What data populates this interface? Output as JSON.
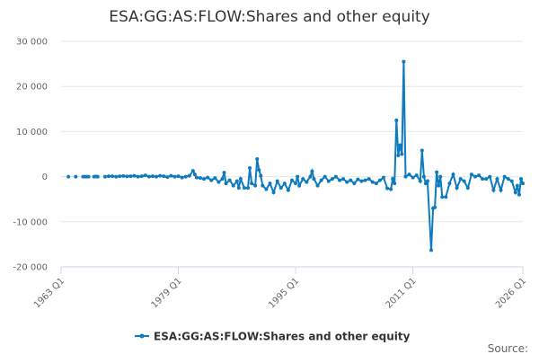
{
  "chart_data": {
    "type": "line",
    "title": "ESA:GG:AS:FLOW:Shares and other equity",
    "source": "Source:",
    "grid": true,
    "legend": "bottom",
    "xlim": [
      1963,
      2026
    ],
    "xticks": [
      {
        "value": 1963,
        "label": "1963 Q1"
      },
      {
        "value": 1979,
        "label": "1979 Q1"
      },
      {
        "value": 1995,
        "label": "1995 Q1"
      },
      {
        "value": 2011,
        "label": "2011 Q1"
      },
      {
        "value": 2026,
        "label": "2026 Q1"
      }
    ],
    "ylim": [
      -20000,
      30000
    ],
    "yticks": [
      {
        "value": -20000,
        "label": "-20 000"
      },
      {
        "value": -10000,
        "label": "-10 000"
      },
      0,
      {
        "value": 10000,
        "label": "10 000"
      },
      {
        "value": 20000,
        "label": "20 000"
      },
      {
        "value": 30000,
        "label": "30 000"
      }
    ],
    "series": [
      {
        "name": "ESA:GG:AS:FLOW:Shares and other equity",
        "color": "#0e7bbf",
        "x": [
          1964,
          null,
          1965,
          null,
          1966,
          1966.25,
          1966.5,
          1966.75,
          null,
          1967.5,
          1967.75,
          1968,
          null,
          1969,
          1969.5,
          1970,
          1970.5,
          1971,
          1971.5,
          1972,
          1972.5,
          1973,
          1973.5,
          1974,
          1974.5,
          1975,
          1975.5,
          1976,
          1976.5,
          1977,
          1977.5,
          1978,
          1978.5,
          1979,
          1979.5,
          1980,
          1980.5,
          1981,
          1981.25,
          1981.5,
          1982,
          1982.5,
          1983,
          1983.5,
          1984,
          1984.5,
          1985,
          1985.25,
          1985.5,
          1986,
          1986.5,
          1987,
          1987.25,
          1987.5,
          1988,
          1988.5,
          1988.75,
          1989,
          1989.5,
          1989.75,
          1990,
          1990.25,
          1990.5,
          1991,
          1991.5,
          1992,
          1992.5,
          1993,
          1993.5,
          1994,
          1994.5,
          1995,
          1995.25,
          1995.5,
          1996,
          1996.5,
          1997,
          1997.25,
          1997.5,
          1998,
          1998.5,
          1999,
          1999.5,
          2000,
          2000.5,
          2001,
          2001.5,
          2002,
          2002.5,
          2003,
          2003.5,
          2004,
          2004.5,
          2005,
          2005.5,
          2006,
          2006.5,
          2007,
          2007.5,
          2008,
          2008.25,
          2008.5,
          2008.75,
          2009,
          2009.25,
          2009.5,
          2009.75,
          2010,
          2010.5,
          2011,
          2011.5,
          2012,
          2012.25,
          2012.5,
          2012.75,
          2013,
          2013.5,
          2013.75,
          2014,
          2014.25,
          2014.5,
          2014.75,
          2015,
          2015.5,
          2016,
          2016.5,
          2017,
          2017.5,
          2018,
          2018.5,
          2019,
          2019.5,
          2020,
          2020.5,
          2021,
          2021.5,
          2022,
          2022.5,
          2023,
          2023.5,
          2024,
          2024.5,
          2025,
          2025.25,
          2025.5,
          2025.75,
          2026
        ],
        "values": [
          0,
          null,
          0,
          null,
          0,
          0,
          0,
          0,
          null,
          0,
          50,
          0,
          null,
          0,
          100,
          100,
          0,
          100,
          150,
          50,
          100,
          200,
          0,
          100,
          300,
          0,
          100,
          0,
          200,
          100,
          -100,
          200,
          0,
          100,
          -200,
          0,
          200,
          1300,
          500,
          -200,
          -300,
          -500,
          -200,
          -800,
          -300,
          -1200,
          -500,
          900,
          -1500,
          -800,
          -2000,
          -1000,
          -2500,
          -500,
          -2500,
          -2500,
          1900,
          -1500,
          -2000,
          3900,
          1500,
          200,
          -2000,
          -2800,
          -1500,
          -3500,
          -1000,
          -2500,
          -1500,
          -3000,
          -800,
          -1500,
          0,
          -2000,
          -500,
          -1200,
          0,
          1200,
          -500,
          -2000,
          -800,
          0,
          -1000,
          -500,
          0,
          -800,
          -500,
          -1200,
          -800,
          -1500,
          -600,
          -1000,
          -800,
          -500,
          -1200,
          -1500,
          -800,
          -200,
          -2600,
          -2800,
          -500,
          -1500,
          12500,
          4700,
          7000,
          5000,
          25500,
          0,
          500,
          -200,
          300,
          -1000,
          5800,
          0,
          -1500,
          -1000,
          -16300,
          -7000,
          -6800,
          1000,
          -2000,
          0,
          -4500,
          -4500,
          -1500,
          500,
          -2500,
          -500,
          -1000,
          -2500,
          500,
          0,
          300,
          -500,
          -500,
          0,
          -3000,
          -500,
          -3000,
          0,
          -500,
          -1000,
          -3500,
          -2000,
          -4000,
          -500,
          -1500
        ]
      }
    ]
  }
}
